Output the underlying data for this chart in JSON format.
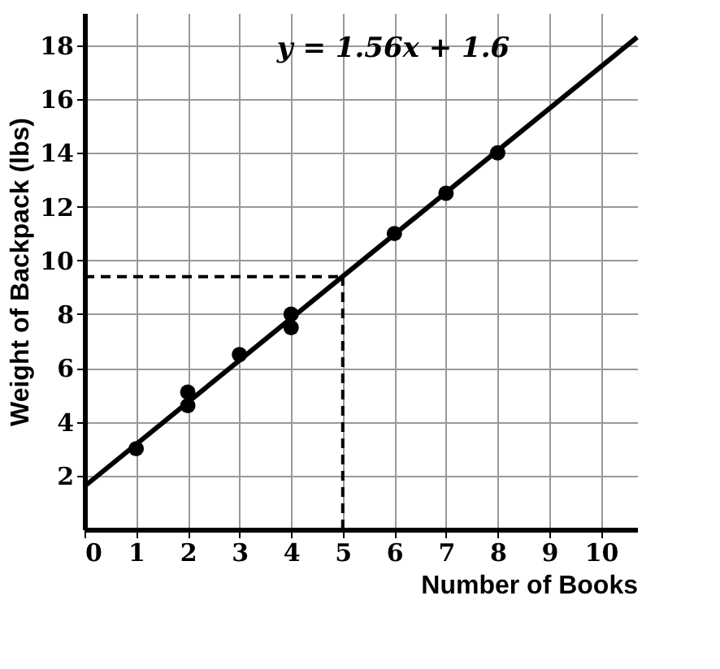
{
  "chart_data": {
    "type": "scatter",
    "xlabel": "Number of Books",
    "ylabel": "Weight of Backpack (lbs)",
    "xlim": [
      0,
      10.7
    ],
    "ylim": [
      0,
      19.2
    ],
    "xticks": [
      0,
      1,
      2,
      3,
      4,
      5,
      6,
      7,
      8,
      9,
      10
    ],
    "yticks": [
      2,
      4,
      6,
      8,
      10,
      12,
      14,
      16,
      18
    ],
    "grid": true,
    "series": [
      {
        "color": "#000000",
        "marker": "circle",
        "x": [
          1,
          2,
          2,
          3,
          4,
          4,
          6,
          7,
          8
        ],
        "values": [
          3,
          4.6,
          5.1,
          6.5,
          7.5,
          8,
          11,
          12.5,
          14
        ]
      },
      {
        "type": "line",
        "color": "#000000",
        "line_style": "solid",
        "x": [
          0,
          10.7
        ],
        "values": [
          1.6,
          18.3
        ]
      },
      {
        "type": "line",
        "color": "#000000",
        "line_style": "dashed",
        "x": [
          0,
          5
        ],
        "values": [
          9.4,
          9.4
        ]
      },
      {
        "type": "line",
        "color": "#000000",
        "line_style": "dashed",
        "x": [
          5,
          5
        ],
        "values": [
          0,
          9.4
        ]
      }
    ],
    "annotations": [
      "y = 1.56x + 1.6"
    ]
  }
}
